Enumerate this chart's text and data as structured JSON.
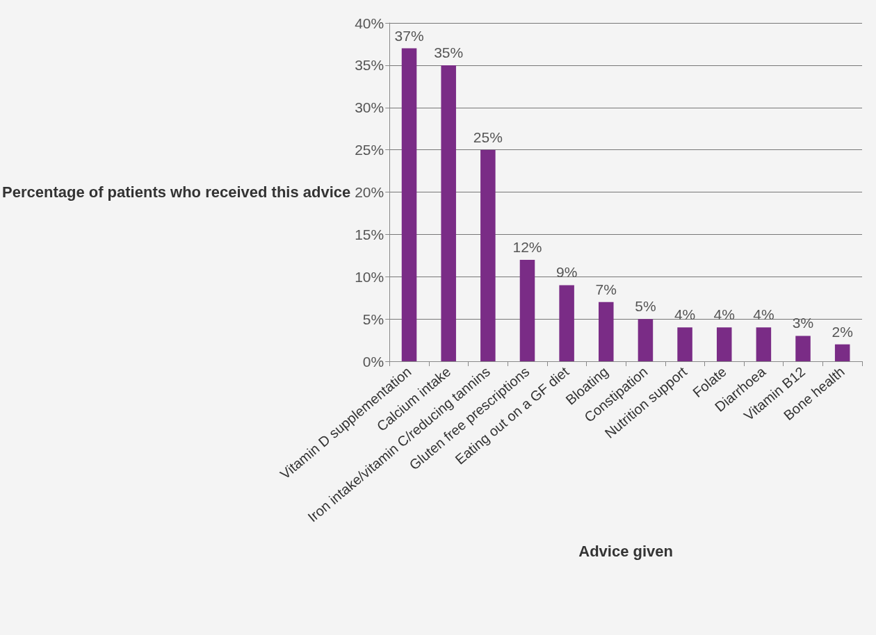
{
  "chart_data": {
    "type": "bar",
    "xlabel": "Advice given",
    "ylabel": "Percentage of patients who received this advice",
    "categories": [
      "Vitamin D supplementation",
      "Calcium intake",
      "Iron intake/vitamin C/reducing tannins",
      "Gluten free prescriptions",
      "Eating out on a GF diet",
      "Bloating",
      "Constipation",
      "Nutrition support",
      "Folate",
      "Diarrhoea",
      "Vitamin B12",
      "Bone health"
    ],
    "values": [
      37,
      35,
      25,
      12,
      9,
      7,
      5,
      4,
      4,
      4,
      3,
      2
    ],
    "value_labels": [
      "37%",
      "35%",
      "25%",
      "12%",
      "9%",
      "7%",
      "5%",
      "4%",
      "4%",
      "4%",
      "3%",
      "2%"
    ],
    "color": "#7a2c86",
    "ylim": [
      0,
      40
    ],
    "yticks": [
      {
        "value": 0,
        "label": "0%"
      },
      {
        "value": 5,
        "label": "5%"
      },
      {
        "value": 10,
        "label": "10%"
      },
      {
        "value": 15,
        "label": "15%"
      },
      {
        "value": 20,
        "label": "20%"
      },
      {
        "value": 25,
        "label": "25%"
      },
      {
        "value": 30,
        "label": "30%"
      },
      {
        "value": 35,
        "label": "35%"
      },
      {
        "value": 40,
        "label": "40%"
      }
    ],
    "grid": "y"
  }
}
